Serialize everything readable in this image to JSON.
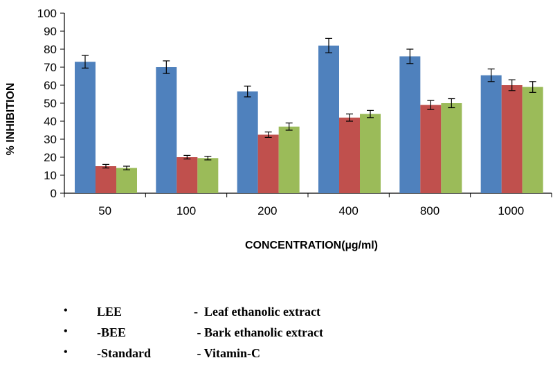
{
  "chart_data": {
    "type": "bar",
    "xlabel": "CONCENTRATION(µg/ml)",
    "ylabel": "% INHIBITION",
    "ylim": [
      0,
      100
    ],
    "yticks": [
      0,
      10,
      20,
      30,
      40,
      50,
      60,
      70,
      80,
      90,
      100
    ],
    "categories": [
      "50",
      "100",
      "200",
      "400",
      "800",
      "1000"
    ],
    "grid": false,
    "error_bars": true,
    "series": [
      {
        "color": "#4f81bd",
        "values": [
          73,
          70,
          56.5,
          82,
          76,
          65.5
        ],
        "errors": [
          3.5,
          3.5,
          3,
          4,
          4,
          3.5
        ]
      },
      {
        "color": "#c0504d",
        "values": [
          15,
          20,
          32.5,
          42,
          49,
          60
        ],
        "errors": [
          1,
          1,
          1.5,
          2,
          2.5,
          3
        ]
      },
      {
        "color": "#9bbb59",
        "values": [
          14,
          19.5,
          37,
          44,
          50,
          59
        ],
        "errors": [
          1,
          1,
          2,
          2,
          2.5,
          3
        ]
      }
    ]
  },
  "legend": [
    {
      "bullet": "•",
      "code": "LEE",
      "desc": "-  Leaf ethanolic extract"
    },
    {
      "bullet": "•",
      "code": "-BEE",
      "desc": " - Bark ethanolic extract"
    },
    {
      "bullet": "•",
      "code": "-Standard",
      "desc": " - Vitamin-C"
    }
  ]
}
